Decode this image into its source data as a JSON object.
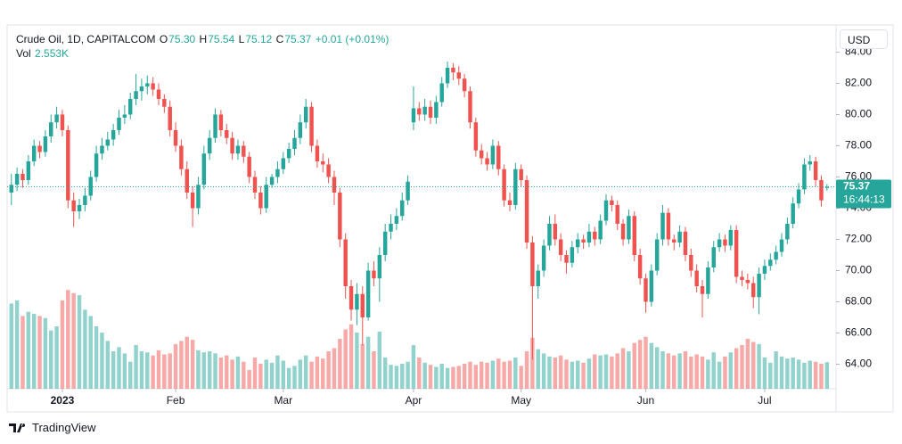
{
  "chart_data": {
    "type": "candlestick",
    "legend": {
      "symbol": "Crude Oil, 1D, CAPITALCOM",
      "o_label": "O",
      "o": "75.30",
      "h_label": "H",
      "h": "75.54",
      "l_label": "L",
      "l": "75.12",
      "c_label": "C",
      "c": "75.37",
      "change": "+0.01 (+0.01%)",
      "vol_label": "Vol",
      "vol": "2.553K"
    },
    "currency": "USD",
    "price_tag": "75.37",
    "countdown": "16:44:13",
    "brand": "TradingView",
    "up_color": "#26a69a",
    "down_color": "#ef5350",
    "grid": false,
    "xlim": [
      -0.75,
      145.6
    ],
    "ylim": [
      62.43,
      85.74
    ],
    "vlim": [
      0,
      35
    ],
    "yticks": [
      {
        "value": 64,
        "label": "64.00"
      },
      {
        "value": 66,
        "label": "66.00"
      },
      {
        "value": 68,
        "label": "68.00"
      },
      {
        "value": 70,
        "label": "70.00"
      },
      {
        "value": 72,
        "label": "72.00"
      },
      {
        "value": 74,
        "label": "74.00"
      },
      {
        "value": 76,
        "label": "76.00"
      },
      {
        "value": 78,
        "label": "78.00"
      },
      {
        "value": 80,
        "label": "80.00"
      },
      {
        "value": 82,
        "label": "82.00"
      },
      {
        "value": 84,
        "label": "84.00"
      }
    ],
    "xticks": [
      {
        "value": 9,
        "label": "2023"
      },
      {
        "value": 29,
        "label": "Feb"
      },
      {
        "value": 48,
        "label": "Mar"
      },
      {
        "value": 71,
        "label": "Apr"
      },
      {
        "value": 90,
        "label": "May"
      },
      {
        "value": 112,
        "label": "Jun"
      },
      {
        "value": 133,
        "label": "Jul"
      }
    ],
    "candles": [
      [
        75.0,
        76.2,
        74.2,
        75.5,
        8.2
      ],
      [
        75.5,
        76.6,
        75.1,
        76.2,
        8.5
      ],
      [
        76.2,
        76.5,
        75.3,
        75.8,
        7.0
      ],
      [
        75.8,
        77.4,
        75.5,
        77.0,
        7.4
      ],
      [
        77.0,
        78.4,
        76.7,
        78.0,
        7.2
      ],
      [
        78.0,
        78.3,
        77.2,
        77.6,
        7.0
      ],
      [
        77.6,
        79.0,
        77.3,
        78.6,
        6.8
      ],
      [
        78.6,
        80.0,
        78.2,
        79.5,
        5.6
      ],
      [
        79.5,
        80.5,
        79.1,
        80.0,
        6.0
      ],
      [
        80.0,
        80.3,
        78.6,
        79.0,
        8.5
      ],
      [
        79.0,
        79.3,
        74.0,
        74.5,
        9.5
      ],
      [
        74.5,
        75.0,
        72.8,
        73.8,
        9.2
      ],
      [
        73.8,
        74.6,
        73.3,
        74.2,
        9.0
      ],
      [
        74.2,
        75.3,
        73.8,
        74.8,
        7.6
      ],
      [
        74.8,
        76.4,
        74.5,
        76.0,
        7.0
      ],
      [
        76.0,
        78.0,
        75.7,
        77.5,
        6.0
      ],
      [
        77.5,
        78.5,
        77.1,
        78.0,
        5.4
      ],
      [
        78.0,
        78.9,
        77.7,
        78.4,
        4.6
      ],
      [
        78.4,
        79.4,
        78.0,
        79.0,
        3.6
      ],
      [
        79.0,
        80.3,
        78.7,
        79.8,
        4.0
      ],
      [
        79.8,
        80.6,
        79.4,
        80.0,
        3.4
      ],
      [
        80.0,
        81.4,
        79.7,
        81.0,
        2.6
      ],
      [
        81.0,
        82.6,
        80.6,
        81.5,
        4.2
      ],
      [
        81.5,
        82.3,
        80.9,
        81.8,
        3.6
      ],
      [
        81.8,
        82.5,
        81.3,
        82.0,
        3.5
      ],
      [
        82.0,
        82.4,
        81.2,
        81.6,
        3.2
      ],
      [
        81.6,
        82.0,
        80.6,
        81.0,
        3.7
      ],
      [
        81.0,
        81.3,
        80.1,
        80.5,
        3.3
      ],
      [
        80.5,
        80.9,
        78.6,
        79.0,
        3.4
      ],
      [
        79.0,
        79.5,
        77.6,
        78.0,
        4.3
      ],
      [
        78.0,
        78.4,
        76.1,
        76.5,
        4.6
      ],
      [
        76.5,
        77.0,
        74.6,
        75.0,
        5.0
      ],
      [
        75.0,
        75.4,
        72.8,
        74.0,
        4.7
      ],
      [
        74.0,
        76.0,
        73.6,
        75.5,
        3.7
      ],
      [
        75.5,
        78.0,
        75.2,
        77.5,
        3.5
      ],
      [
        77.5,
        79.0,
        77.1,
        78.5,
        3.6
      ],
      [
        78.5,
        80.4,
        78.2,
        80.0,
        3.4
      ],
      [
        80.0,
        80.3,
        78.6,
        79.0,
        3.0
      ],
      [
        79.0,
        79.4,
        78.1,
        78.5,
        3.2
      ],
      [
        78.5,
        78.9,
        77.1,
        77.5,
        2.8
      ],
      [
        77.5,
        78.4,
        77.1,
        78.0,
        3.1
      ],
      [
        78.0,
        78.3,
        76.9,
        77.3,
        2.6
      ],
      [
        77.3,
        77.6,
        75.6,
        76.0,
        1.8
      ],
      [
        76.0,
        76.4,
        74.6,
        75.0,
        3.0
      ],
      [
        75.0,
        75.4,
        73.6,
        74.0,
        2.4
      ],
      [
        74.0,
        76.0,
        73.7,
        75.5,
        2.8
      ],
      [
        75.5,
        76.2,
        75.3,
        76.0,
        2.5
      ],
      [
        76.0,
        77.0,
        75.6,
        76.5,
        3.2
      ],
      [
        76.5,
        77.6,
        76.2,
        77.2,
        2.7
      ],
      [
        77.2,
        78.2,
        76.9,
        77.8,
        2.0
      ],
      [
        77.8,
        79.0,
        77.4,
        78.5,
        2.2
      ],
      [
        78.5,
        80.0,
        78.1,
        79.5,
        2.8
      ],
      [
        79.5,
        81.0,
        79.1,
        80.5,
        3.2
      ],
      [
        80.5,
        80.8,
        77.6,
        78.0,
        2.6
      ],
      [
        78.0,
        78.4,
        76.6,
        77.0,
        3.1
      ],
      [
        77.0,
        77.5,
        76.3,
        76.8,
        2.9
      ],
      [
        76.8,
        77.2,
        75.6,
        76.0,
        3.6
      ],
      [
        76.0,
        76.4,
        74.2,
        75.0,
        3.9
      ],
      [
        75.0,
        75.3,
        71.5,
        72.0,
        4.8
      ],
      [
        72.0,
        72.4,
        68.2,
        69.0,
        5.7
      ],
      [
        69.0,
        69.4,
        66.8,
        67.5,
        6.2
      ],
      [
        67.5,
        69.2,
        66.5,
        68.5,
        5.4
      ],
      [
        68.5,
        69.0,
        65.2,
        67.0,
        4.3
      ],
      [
        67.0,
        70.5,
        66.8,
        70.0,
        5.0
      ],
      [
        70.0,
        70.6,
        69.0,
        69.5,
        3.6
      ],
      [
        69.5,
        71.5,
        68.0,
        71.0,
        5.5
      ],
      [
        71.0,
        73.0,
        70.6,
        72.5,
        3.0
      ],
      [
        72.5,
        73.6,
        72.0,
        73.0,
        2.3
      ],
      [
        73.0,
        74.0,
        72.6,
        73.5,
        2.2
      ],
      [
        73.5,
        75.0,
        73.2,
        74.5,
        2.4
      ],
      [
        74.5,
        76.1,
        74.2,
        75.7,
        2.6
      ],
      [
        79.5,
        81.8,
        79.0,
        80.4,
        4.2
      ],
      [
        80.4,
        80.8,
        79.6,
        80.0,
        3.0
      ],
      [
        80.0,
        81.0,
        79.6,
        80.5,
        2.5
      ],
      [
        80.5,
        80.9,
        79.4,
        79.8,
        2.3
      ],
      [
        79.8,
        81.2,
        79.4,
        80.8,
        2.1
      ],
      [
        80.8,
        82.4,
        80.5,
        82.0,
        2.4
      ],
      [
        82.0,
        83.4,
        81.7,
        83.0,
        2.0
      ],
      [
        83.0,
        83.3,
        82.2,
        82.7,
        2.1
      ],
      [
        82.7,
        83.1,
        81.9,
        82.3,
        2.2
      ],
      [
        82.3,
        82.6,
        81.1,
        81.5,
        2.4
      ],
      [
        81.5,
        81.8,
        79.1,
        79.5,
        2.6
      ],
      [
        79.5,
        79.8,
        77.3,
        77.7,
        2.3
      ],
      [
        77.7,
        78.1,
        76.8,
        77.2,
        2.6
      ],
      [
        77.2,
        77.6,
        76.4,
        76.8,
        2.5
      ],
      [
        76.8,
        78.4,
        76.5,
        78.0,
        2.7
      ],
      [
        78.0,
        78.3,
        76.1,
        76.5,
        2.9
      ],
      [
        76.5,
        76.8,
        74.1,
        74.5,
        2.6
      ],
      [
        74.5,
        75.0,
        73.8,
        74.2,
        2.7
      ],
      [
        74.2,
        76.9,
        73.9,
        76.5,
        3.0
      ],
      [
        76.5,
        76.8,
        75.4,
        75.8,
        2.2
      ],
      [
        75.8,
        76.1,
        71.4,
        71.8,
        3.6
      ],
      [
        71.8,
        72.2,
        64.3,
        69.0,
        4.9
      ],
      [
        69.0,
        70.4,
        68.2,
        70.0,
        3.8
      ],
      [
        70.0,
        72.0,
        69.6,
        71.6,
        3.4
      ],
      [
        71.6,
        73.5,
        71.3,
        73.0,
        3.1
      ],
      [
        73.0,
        73.6,
        71.6,
        72.0,
        3.0
      ],
      [
        72.0,
        72.4,
        70.6,
        71.0,
        3.2
      ],
      [
        71.0,
        71.3,
        69.8,
        70.5,
        2.8
      ],
      [
        70.5,
        71.9,
        70.2,
        71.5,
        2.6
      ],
      [
        71.5,
        72.4,
        71.1,
        72.0,
        2.7
      ],
      [
        72.0,
        72.3,
        71.4,
        71.8,
        2.5
      ],
      [
        71.8,
        73.0,
        71.5,
        72.5,
        2.9
      ],
      [
        72.5,
        72.8,
        71.6,
        72.0,
        3.3
      ],
      [
        72.0,
        73.6,
        71.7,
        73.2,
        3.2
      ],
      [
        73.2,
        74.9,
        72.9,
        74.5,
        3.3
      ],
      [
        74.5,
        74.8,
        73.8,
        74.2,
        3.1
      ],
      [
        74.2,
        74.5,
        72.6,
        73.0,
        3.4
      ],
      [
        73.0,
        73.3,
        71.6,
        72.0,
        3.9
      ],
      [
        72.0,
        73.9,
        71.7,
        73.5,
        3.6
      ],
      [
        73.5,
        73.8,
        70.6,
        71.0,
        4.4
      ],
      [
        71.0,
        71.4,
        69.1,
        69.5,
        4.7
      ],
      [
        69.5,
        69.8,
        67.3,
        68.0,
        5.0
      ],
      [
        68.0,
        70.4,
        67.7,
        70.0,
        4.4
      ],
      [
        70.0,
        72.4,
        69.7,
        72.0,
        4.0
      ],
      [
        72.0,
        74.2,
        71.6,
        73.7,
        3.6
      ],
      [
        73.7,
        74.0,
        71.6,
        72.0,
        3.4
      ],
      [
        72.0,
        72.3,
        71.3,
        71.8,
        3.2
      ],
      [
        71.8,
        72.9,
        71.5,
        72.5,
        3.4
      ],
      [
        72.5,
        72.8,
        70.6,
        71.0,
        3.6
      ],
      [
        71.0,
        71.4,
        69.6,
        70.0,
        3.1
      ],
      [
        70.0,
        70.4,
        68.6,
        69.0,
        3.3
      ],
      [
        69.0,
        69.4,
        67.0,
        68.5,
        3.1
      ],
      [
        68.5,
        70.6,
        68.2,
        70.2,
        2.8
      ],
      [
        70.2,
        71.9,
        69.9,
        71.5,
        3.5
      ],
      [
        71.5,
        72.4,
        71.2,
        72.0,
        2.6
      ],
      [
        72.0,
        72.3,
        71.2,
        71.6,
        3.1
      ],
      [
        71.6,
        72.9,
        71.3,
        72.6,
        3.5
      ],
      [
        72.6,
        72.9,
        69.2,
        69.6,
        3.9
      ],
      [
        69.6,
        70.0,
        69.0,
        69.4,
        4.2
      ],
      [
        69.4,
        69.8,
        68.8,
        69.2,
        4.8
      ],
      [
        69.2,
        69.6,
        67.6,
        68.3,
        4.5
      ],
      [
        68.3,
        70.2,
        67.2,
        69.8,
        4.3
      ],
      [
        69.8,
        70.7,
        69.4,
        70.3,
        3.0
      ],
      [
        70.3,
        71.1,
        70.0,
        70.7,
        2.5
      ],
      [
        70.7,
        71.6,
        70.4,
        71.2,
        3.6
      ],
      [
        71.2,
        72.4,
        70.9,
        72.0,
        3.1
      ],
      [
        72.0,
        73.4,
        71.7,
        73.0,
        2.9
      ],
      [
        73.0,
        74.7,
        72.7,
        74.3,
        3.0
      ],
      [
        74.3,
        75.6,
        74.0,
        75.2,
        2.8
      ],
      [
        75.2,
        77.2,
        74.9,
        76.8,
        2.5
      ],
      [
        76.8,
        77.4,
        76.4,
        77.0,
        2.7
      ],
      [
        77.0,
        77.3,
        75.4,
        75.8,
        2.6
      ],
      [
        75.8,
        76.1,
        74.1,
        74.5,
        2.4
      ],
      [
        75.3,
        75.54,
        75.12,
        75.37,
        2.553
      ]
    ]
  }
}
